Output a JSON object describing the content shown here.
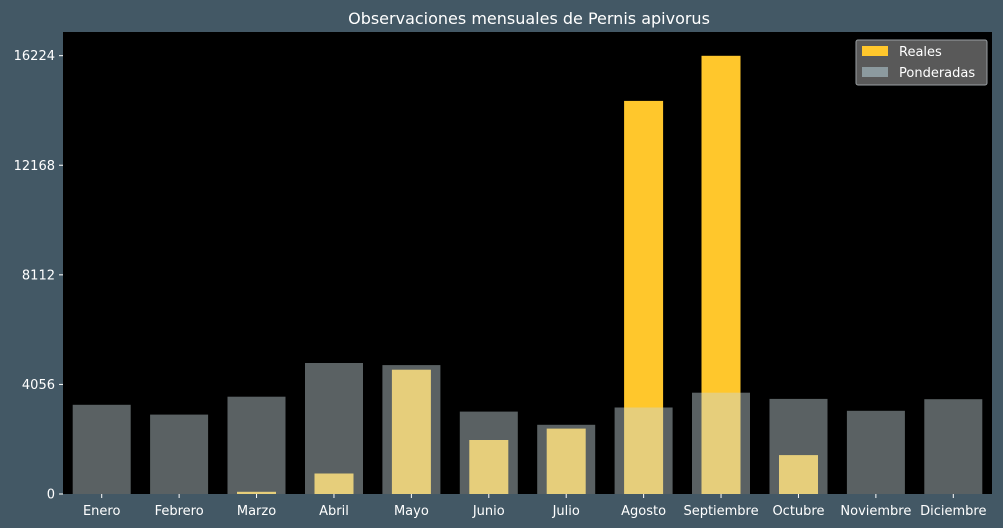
{
  "chart_data": {
    "type": "bar",
    "title": "Observaciones mensuales de Pernis apivorus",
    "xlabel": "",
    "ylabel": "",
    "categories": [
      "Enero",
      "Febrero",
      "Marzo",
      "Abril",
      "Mayo",
      "Junio",
      "Julio",
      "Agosto",
      "Septiembre",
      "Octubre",
      "Noviembre",
      "Diciembre"
    ],
    "yticks": [
      "0",
      "4056",
      "8112",
      "12168",
      "16224"
    ],
    "ylim": [
      0,
      17100
    ],
    "legend_position": "top-right",
    "series": [
      {
        "name": "Reales",
        "color": "#ffc72c",
        "values": [
          0,
          0,
          80,
          760,
          4600,
          2000,
          2420,
          14550,
          16220,
          1440,
          0,
          0
        ]
      },
      {
        "name": "Ponderadas",
        "color": "#c8d6dc",
        "opacity": 0.45,
        "values": [
          3300,
          2940,
          3600,
          4850,
          4770,
          3050,
          2560,
          3200,
          3750,
          3520,
          3080,
          3510
        ]
      }
    ],
    "grid": false
  },
  "colors": {
    "figure_background": "#435865",
    "plot_background": "#000000",
    "legend_background": "#595959"
  }
}
